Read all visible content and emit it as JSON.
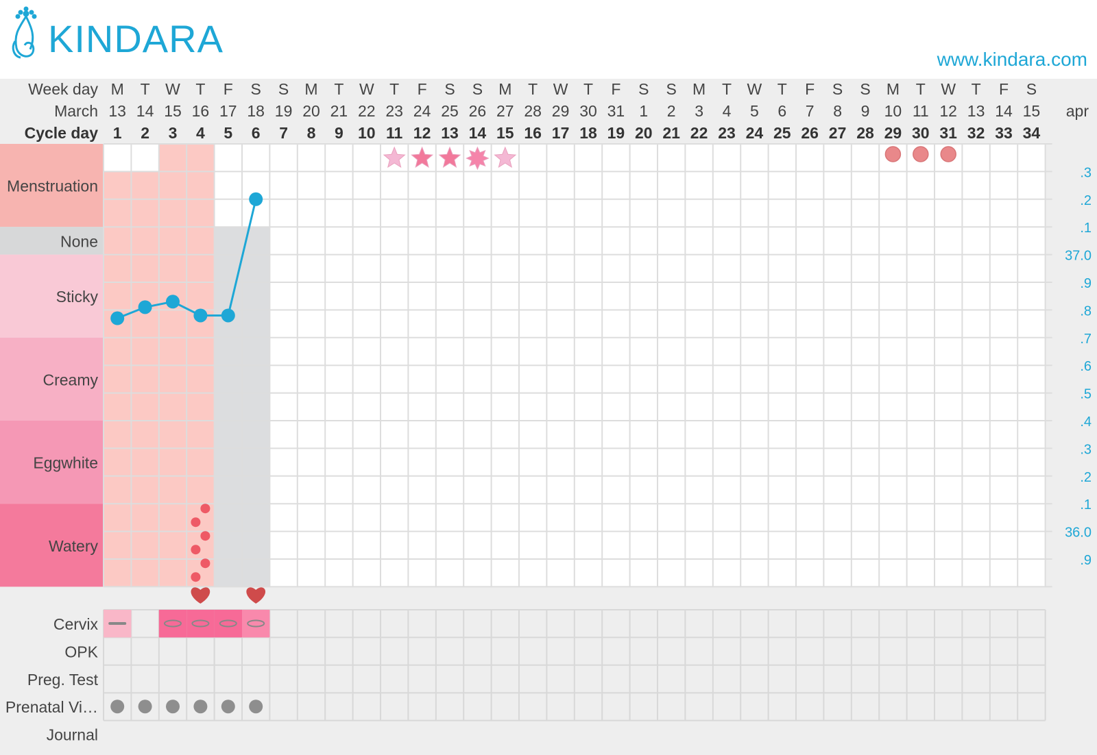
{
  "brand": {
    "logo_text": "KINDARA",
    "website": "www.kindara.com",
    "accent_color": "#1ea7d6"
  },
  "header": {
    "weekday_label": "Week day",
    "month_label": "March",
    "cycle_label": "Cycle day",
    "next_month_label": "apr"
  },
  "chart_data": {
    "type": "line",
    "weekdays": [
      "M",
      "T",
      "W",
      "T",
      "F",
      "S",
      "S",
      "M",
      "T",
      "W",
      "T",
      "F",
      "S",
      "S",
      "M",
      "T",
      "W",
      "T",
      "F",
      "S",
      "S",
      "M",
      "T",
      "W",
      "T",
      "F",
      "S",
      "S",
      "M",
      "T",
      "W",
      "T",
      "F",
      "S"
    ],
    "dates": [
      "13",
      "14",
      "15",
      "16",
      "17",
      "18",
      "19",
      "20",
      "21",
      "22",
      "23",
      "24",
      "25",
      "26",
      "27",
      "28",
      "29",
      "30",
      "31",
      "1",
      "2",
      "3",
      "4",
      "5",
      "6",
      "7",
      "8",
      "9",
      "10",
      "11",
      "12",
      "13",
      "14",
      "15"
    ],
    "cycle_days": [
      "1",
      "2",
      "3",
      "4",
      "5",
      "6",
      "7",
      "8",
      "9",
      "10",
      "11",
      "12",
      "13",
      "14",
      "15",
      "16",
      "17",
      "18",
      "19",
      "20",
      "21",
      "22",
      "23",
      "24",
      "25",
      "26",
      "27",
      "28",
      "29",
      "30",
      "31",
      "32",
      "33",
      "34"
    ],
    "temp_axis_labels": [
      ".3",
      ".2",
      ".1",
      "37.0",
      ".9",
      ".8",
      ".7",
      ".6",
      ".5",
      ".4",
      ".3",
      ".2",
      ".1",
      "36.0",
      ".9"
    ],
    "temperature": {
      "cycle_day": [
        1,
        2,
        3,
        4,
        5,
        6
      ],
      "value": [
        36.77,
        36.81,
        36.83,
        36.78,
        36.78,
        37.2
      ],
      "color": "#1ea7d6"
    },
    "fluid_rows": [
      "Menstruation",
      "None",
      "Sticky",
      "Creamy",
      "Eggwhite",
      "Watery"
    ],
    "fluid_colors": {
      "Menstruation": "#f7b4b0",
      "None": "#d7d8d9",
      "Sticky": "#f9c9d6",
      "Creamy": "#f7b0c5",
      "Eggwhite": "#f598b5",
      "Watery": "#f47a9c"
    },
    "menstruation_days": [
      3,
      4
    ],
    "menstruation_shade_days": [
      1,
      2,
      3,
      4
    ],
    "none_days": [
      5,
      6
    ],
    "watery_spot_day": 4,
    "fertility_stars_days": [
      11,
      12,
      13,
      14,
      15
    ],
    "predicted_period_days": [
      29,
      30,
      31
    ],
    "intercourse_days": [
      4,
      6
    ],
    "cervix": [
      {
        "day": 1,
        "position": "low"
      },
      {
        "day": 3,
        "position": "high"
      },
      {
        "day": 4,
        "position": "high"
      },
      {
        "day": 5,
        "position": "high"
      },
      {
        "day": 6,
        "position": "medium"
      }
    ],
    "prenatal_vitamin_days": [
      1,
      2,
      3,
      4,
      5,
      6
    ],
    "lower_rows": [
      "Cervix",
      "OPK",
      "Preg. Test",
      "Prenatal Vi…",
      "Journal"
    ]
  }
}
